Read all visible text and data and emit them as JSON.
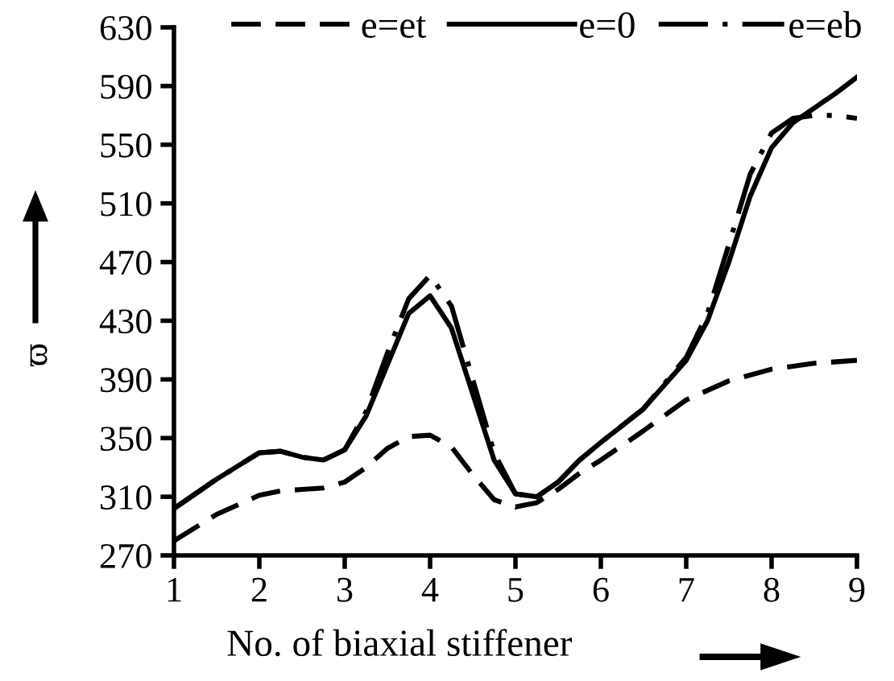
{
  "chart_data": {
    "type": "line",
    "xlabel": "No. of biaxial stiffener",
    "ylabel": "ϖ",
    "series": [
      {
        "name": "e=et",
        "color": "#000000",
        "line_style": "dashed",
        "x": [
          1,
          1.5,
          2,
          2.25,
          2.5,
          2.75,
          3,
          3.25,
          3.5,
          3.75,
          4,
          4.25,
          4.5,
          4.75,
          5,
          5.25,
          5.5,
          5.75,
          6,
          6.5,
          7,
          7.5,
          8,
          8.5,
          9
        ],
        "values": [
          280,
          298,
          311,
          314,
          315,
          316,
          320,
          330,
          343,
          351,
          352,
          344,
          325,
          308,
          303,
          306,
          315,
          326,
          335,
          355,
          376,
          389,
          397,
          401,
          403
        ]
      },
      {
        "name": "e=0",
        "color": "#000000",
        "line_style": "solid",
        "x": [
          1,
          1.5,
          2,
          2.25,
          2.5,
          2.75,
          3,
          3.25,
          3.5,
          3.75,
          4,
          4.25,
          4.5,
          4.75,
          5,
          5.25,
          5.5,
          5.75,
          6,
          6.5,
          7,
          7.25,
          7.5,
          7.75,
          8,
          8.25,
          8.5,
          8.75,
          9
        ],
        "values": [
          302,
          322,
          340,
          341,
          337,
          335,
          342,
          365,
          400,
          435,
          447,
          425,
          380,
          335,
          312,
          310,
          320,
          335,
          347,
          370,
          403,
          430,
          470,
          515,
          548,
          565,
          575,
          585,
          596
        ]
      },
      {
        "name": "e=eb",
        "color": "#000000",
        "line_style": "dashdot",
        "x": [
          1,
          1.5,
          2,
          2.25,
          2.5,
          2.75,
          3,
          3.25,
          3.5,
          3.75,
          4,
          4.25,
          4.5,
          4.75,
          5,
          5.25,
          5.5,
          5.75,
          6,
          6.5,
          7,
          7.25,
          7.5,
          7.75,
          8,
          8.25,
          8.5,
          8.75,
          9
        ],
        "values": [
          302,
          322,
          340,
          341,
          337,
          335,
          342,
          368,
          408,
          445,
          461,
          440,
          390,
          340,
          312,
          310,
          320,
          335,
          347,
          370,
          405,
          435,
          482,
          530,
          558,
          568,
          570,
          570,
          568
        ]
      }
    ],
    "xlim": [
      1,
      9
    ],
    "ylim": [
      270,
      630
    ],
    "xticks": [
      1,
      2,
      3,
      4,
      5,
      6,
      7,
      8,
      9
    ],
    "yticks": [
      270,
      310,
      350,
      390,
      430,
      470,
      510,
      550,
      590,
      630
    ],
    "grid": false,
    "legend": "top right",
    "marker": "none"
  }
}
